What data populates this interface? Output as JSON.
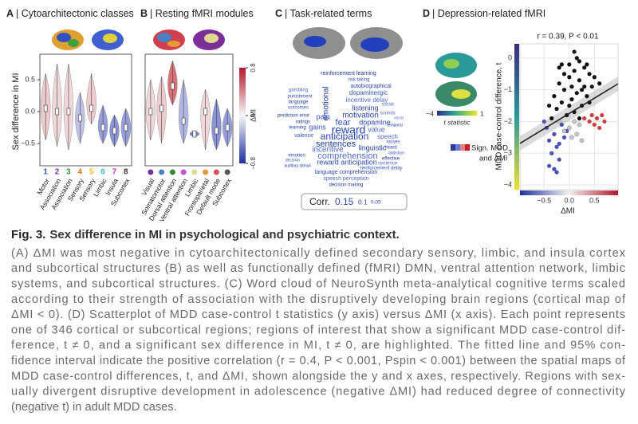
{
  "figure": {
    "panels": {
      "a": {
        "label": "A",
        "title": "| Cytoarchitectonic classes",
        "y_label": "Sex difference in MI",
        "ylim": [
          -0.85,
          0.9
        ],
        "yticks": [
          0.5,
          {
            "value": 0,
            "label": "0.0"
          },
          {
            "value": -0.5,
            "label": "−0.5"
          }
        ],
        "category_numbers": [
          "1",
          "2",
          "3",
          "4",
          "5",
          "6",
          "7",
          "8"
        ],
        "categories": [
          "Motor",
          "Association",
          "Association",
          "Sensory",
          "Sensory",
          "Limbic",
          "Insula",
          "Subcortex"
        ],
        "label_colors": [
          "#2b4fd0",
          "#6a3bb0",
          "#2f9a3a",
          "#e07b1a",
          "#e8c21a",
          "#35c0d8",
          "#c43bb8",
          "#333333"
        ],
        "medians": [
          0.05,
          0.0,
          0.0,
          -0.1,
          0.05,
          -0.25,
          -0.3,
          -0.25
        ],
        "mins": [
          -0.45,
          -0.55,
          -0.6,
          -0.5,
          -0.2,
          -0.5,
          -0.55,
          -0.55
        ],
        "maxs": [
          0.6,
          0.75,
          0.75,
          0.3,
          0.6,
          0.1,
          -0.05,
          0.05
        ]
      },
      "b": {
        "label": "B",
        "title": "| Resting fMRI modules",
        "categories": [
          "Visual",
          "Somatomotor",
          "Dorsal attention",
          "Ventral attention",
          "Limbic",
          "Frontoparietal",
          "Default mode",
          "Subcortex"
        ],
        "label_colors": [
          "#7b2f9a",
          "#4a7fc0",
          "#2f8a3a",
          "#c44fd0",
          "#e0d890",
          "#e89a30",
          "#d85060",
          "#555555"
        ],
        "medians": [
          0.0,
          0.05,
          0.4,
          -0.15,
          -0.35,
          0.0,
          -0.3,
          -0.25
        ],
        "mins": [
          -0.45,
          -0.5,
          0.1,
          -0.5,
          -0.4,
          -0.6,
          -0.6,
          -0.55
        ],
        "maxs": [
          0.5,
          0.55,
          0.8,
          0.5,
          -0.3,
          0.35,
          0.2,
          0.05
        ],
        "colorbar": {
          "title": "ΔMI",
          "lim": [
            -0.8,
            0.8
          ],
          "ticks": [
            0.8,
            0,
            {
              "value": -0.8,
              "label": "−0.8"
            }
          ]
        }
      },
      "c": {
        "label": "C",
        "title": "| Task-related terms",
        "words": [
          "reinforcement learning",
          "risk taking",
          "autobiographical",
          "gambling",
          "emotional",
          "dopaminergic",
          "punishment",
          "incentive delay",
          "language",
          "outcomes",
          "listening",
          "social",
          "prediction error",
          "pain",
          "motivation",
          "sounds",
          "ratings",
          "fear",
          "dopamine",
          "vocal",
          "learning",
          "gains",
          "reward",
          "value",
          "temporal",
          "valence",
          "anticipation",
          "speech",
          "sentences",
          "losses",
          "heard",
          "incentive",
          "linguistic",
          "addiction",
          "emotion",
          "comprehension",
          "effective",
          "decision",
          "reward anticipation",
          "sentence",
          "auditory stimuli",
          "reinforcement delay",
          "language comprehension",
          "speech perception",
          "decision making"
        ],
        "legend": {
          "title": "Corr.",
          "values": [
            0.15,
            0.1,
            0.05
          ]
        }
      },
      "d": {
        "label": "D",
        "title": "| Depression-related fMRI",
        "stat": "r = 0.39, P < 0.01",
        "y_label": "MDD case-control difference, t",
        "x_label": "ΔMI",
        "xlim": [
          -0.98,
          0.97
        ],
        "ylim": [
          -4.15,
          0.45
        ],
        "xticks": [
          {
            "value": -0.5,
            "label": "−0.5"
          },
          {
            "value": 0,
            "label": "0.0"
          },
          0.5
        ],
        "yticks": [
          0,
          {
            "value": -1,
            "label": "−1"
          },
          {
            "value": -2,
            "label": "−2"
          },
          {
            "value": -3,
            "label": "−3"
          },
          {
            "value": -4,
            "label": "−4"
          }
        ],
        "colorbar": {
          "title": "t statistic",
          "ticks": [
            {
              "value": -4,
              "label": "−4"
            },
            1
          ]
        },
        "legend": [
          "Sign. MDD",
          "and ΔMI"
        ],
        "series": [
          {
            "color": "#111111",
            "x": [
              -0.3,
              -0.2,
              -0.1,
              0.0,
              0.1,
              0.2,
              0.3,
              0.4,
              -0.25,
              -0.15,
              -0.05,
              0.05,
              0.15,
              0.25,
              0.35,
              0.45,
              -0.35,
              -0.2,
              0.0,
              0.1,
              0.2,
              0.3,
              -0.1,
              0.05,
              0.15,
              0.25,
              0.4,
              0.5,
              -0.4,
              0.6,
              0.0,
              0.2,
              -0.15,
              0.35,
              0.1
            ],
            "y": [
              -1.2,
              -0.8,
              -1.0,
              -0.6,
              -0.4,
              -0.7,
              -0.9,
              -0.5,
              -1.6,
              -1.4,
              -1.8,
              -1.3,
              -1.1,
              -1.5,
              -1.2,
              -0.9,
              -1.9,
              -0.3,
              -0.2,
              -1.7,
              -0.1,
              -0.3,
              -0.5,
              -0.9,
              0.0,
              -1.0,
              -1.4,
              -0.6,
              -1.5,
              -0.8,
              -1.5,
              -1.9,
              -0.2,
              -0.2,
              0.2
            ]
          },
          {
            "color": "#4a4fb8",
            "x": [
              -0.45,
              -0.4,
              -0.35,
              -0.3,
              -0.25,
              -0.2,
              -0.15,
              -0.1,
              -0.4,
              -0.3,
              -0.2,
              -0.5,
              -0.05,
              -0.25
            ],
            "y": [
              -2.2,
              -2.6,
              -3.0,
              -2.4,
              -2.8,
              -3.2,
              -2.1,
              -2.5,
              -3.4,
              -3.5,
              -2.7,
              -2.0,
              -2.3,
              -3.6
            ]
          },
          {
            "color": "#d04040",
            "x": [
              0.3,
              0.4,
              0.45,
              0.5,
              0.55,
              0.6,
              0.65,
              0.7
            ],
            "y": [
              -1.9,
              -2.0,
              -1.8,
              -2.1,
              -1.9,
              -2.2,
              -1.8,
              -2.0
            ]
          },
          {
            "color": "#c8c8c8",
            "x": [
              -0.2,
              -0.1,
              0.0,
              0.05,
              0.1,
              0.15,
              0.2,
              0.25
            ],
            "y": [
              -2.0,
              -2.3,
              -2.2,
              -2.5,
              -2.0,
              -2.4,
              -2.1,
              -2.6
            ]
          }
        ],
        "fit": {
          "x": [
            -0.98,
            0.97
          ],
          "y": [
            -2.69,
            -0.81
          ]
        }
      }
    }
  },
  "caption": {
    "title": "Fig. 3.",
    "headline": "Sex difference in MI in psychological and psychiatric context.",
    "lines": [
      "(A) ΔMI was most negative in cytoarchitectonically defined secondary sensory, limbic, and insula cortex",
      "and subcortical structures (B) as well as functionally defined (fMRI) DMN, ventral attention network, limbic",
      "systems, and subcortical structures. (C) Word cloud of NeuroSynth meta-analytical cognitive terms scaled",
      "according to their strength of association with the disruptively developing brain regions (cortical map of",
      "ΔMI < 0). (D) Scatterplot of MDD case-control t statistics (y axis) versus ΔMI (x axis). Each point represents",
      "one of 346 cortical or subcortical regions; regions of interest that show a significant MDD case-control dif-",
      "ference, t ≠ 0, and a significant sex difference in MI, t ≠ 0, are highlighted. The fitted line and 95% con-",
      "fidence interval indicate the positive correlation (r = 0.4, P < 0.001, Pspin < 0.001) between the spatial maps of",
      "MDD case-control differences, t, and ΔMI, shown alongside the y and x axes, respectively. Regions with sex-",
      "ually divergent disruptive development in adolescence (negative ΔMI) had reduced degree of connectivity",
      "(negative t) in adult MDD cases."
    ]
  }
}
